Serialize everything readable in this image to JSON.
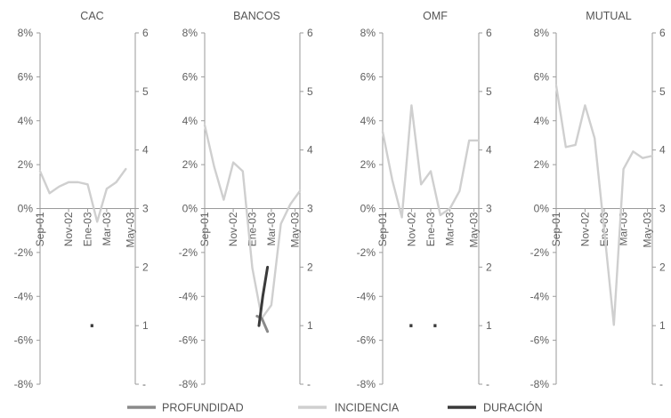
{
  "colors": {
    "profundidad": "#8a8a8a",
    "incidencia": "#cfcfcf",
    "duracion": "#3a3a3a",
    "axis": "#9a9a9a"
  },
  "legend": [
    {
      "key": "profundidad",
      "label": "PROFUNDIDAD"
    },
    {
      "key": "incidencia",
      "label": "INCIDENCIA"
    },
    {
      "key": "duracion",
      "label": "DURACIÓN"
    }
  ],
  "chart_data": [
    {
      "type": "line",
      "title": "CAC",
      "x_tick_labels": [
        "Sep-01",
        "Nov-02",
        "Ene-03",
        "Mar-03",
        "May-03"
      ],
      "y_left_ticks": [
        "8%",
        "6%",
        "4%",
        "2%",
        "0%",
        "-2%",
        "-4%",
        "-6%",
        "-8%"
      ],
      "y_right_ticks": [
        "6",
        "5",
        "4",
        "3",
        "2",
        "1",
        "-"
      ],
      "ylim_left": [
        -8,
        8
      ],
      "ylim_right": [
        0,
        6
      ],
      "series": [
        {
          "key": "incidencia",
          "axis": "left",
          "x": [
            0,
            1,
            2,
            3,
            4,
            5,
            6,
            7,
            8,
            9
          ],
          "values": [
            1.7,
            0.7,
            1.0,
            1.2,
            1.2,
            1.1,
            -0.6,
            0.9,
            1.2,
            1.8
          ]
        },
        {
          "key": "profundidad",
          "axis": "left",
          "x": [],
          "values": []
        },
        {
          "key": "duracion",
          "axis": "right",
          "x": [
            5.3,
            5.6
          ],
          "values": [
            1,
            1
          ]
        }
      ]
    },
    {
      "type": "line",
      "title": "BANCOS",
      "x_tick_labels": [
        "Sep-01",
        "Nov-02",
        "Ene-03",
        "Mar-03",
        "May-03"
      ],
      "y_left_ticks": [
        "8%",
        "6%",
        "4%",
        "2%",
        "0%",
        "-2%",
        "-4%",
        "-6%",
        "-8%"
      ],
      "y_right_ticks": [
        "6",
        "5",
        "4",
        "3",
        "2",
        "1",
        "-"
      ],
      "ylim_left": [
        -8,
        8
      ],
      "ylim_right": [
        0,
        6
      ],
      "series": [
        {
          "key": "incidencia",
          "axis": "left",
          "x": [
            0,
            1,
            2,
            3,
            4,
            5,
            6,
            7,
            8,
            9,
            10
          ],
          "values": [
            3.8,
            1.9,
            0.4,
            2.1,
            1.7,
            -2.7,
            -5.0,
            -4.4,
            -0.7,
            0.2,
            0.8
          ]
        },
        {
          "key": "profundidad",
          "axis": "left",
          "x": [
            5.5,
            6.0,
            6.6
          ],
          "values": [
            -4.9,
            -5.0,
            -5.6
          ]
        },
        {
          "key": "duracion",
          "axis": "right",
          "x": [
            5.7,
            6.1,
            6.6
          ],
          "values": [
            1.0,
            1.5,
            2.0
          ]
        }
      ]
    },
    {
      "type": "line",
      "title": "OMF",
      "x_tick_labels": [
        "Sep-01",
        "Nov-02",
        "Ene-03",
        "Mar-03",
        "May-03"
      ],
      "y_left_ticks": [
        "8%",
        "6%",
        "4%",
        "2%",
        "0%",
        "-2%",
        "-4%",
        "-6%",
        "-8%"
      ],
      "y_right_ticks": [
        "6",
        "5",
        "4",
        "3",
        "2",
        "1",
        "-"
      ],
      "ylim_left": [
        -8,
        8
      ],
      "ylim_right": [
        0,
        6
      ],
      "series": [
        {
          "key": "incidencia",
          "axis": "left",
          "x": [
            0,
            1,
            2,
            3,
            4,
            5,
            6,
            7,
            8,
            9,
            10
          ],
          "values": [
            3.5,
            1.3,
            -0.4,
            4.7,
            1.1,
            1.7,
            -0.3,
            0.0,
            0.8,
            3.1,
            3.1
          ]
        },
        {
          "key": "profundidad",
          "axis": "left",
          "x": [],
          "values": []
        },
        {
          "key": "duracion",
          "axis": "right",
          "x": [
            2.8,
            3.1,
            5.3,
            5.6
          ],
          "values": [
            1,
            1,
            1,
            1
          ]
        }
      ]
    },
    {
      "type": "line",
      "title": "MUTUAL",
      "x_tick_labels": [
        "Sep-01",
        "Nov-02",
        "Ene-03",
        "Mar-03",
        "May-03"
      ],
      "y_left_ticks": [
        "8%",
        "6%",
        "4%",
        "2%",
        "0%",
        "-2%",
        "-4%",
        "-6%",
        "-8%"
      ],
      "y_right_ticks": [
        "6",
        "5",
        "4",
        "3",
        "2",
        "1",
        "-"
      ],
      "ylim_left": [
        -8,
        8
      ],
      "ylim_right": [
        0,
        6
      ],
      "series": [
        {
          "key": "incidencia",
          "axis": "left",
          "x": [
            0,
            1,
            2,
            3,
            4,
            5,
            6,
            7,
            8,
            9,
            10
          ],
          "values": [
            5.6,
            2.8,
            2.9,
            4.7,
            3.2,
            -1.0,
            -5.3,
            1.8,
            2.6,
            2.3,
            2.4
          ]
        },
        {
          "key": "profundidad",
          "axis": "left",
          "x": [],
          "values": []
        },
        {
          "key": "duracion",
          "axis": "right",
          "x": [],
          "values": []
        }
      ]
    }
  ]
}
